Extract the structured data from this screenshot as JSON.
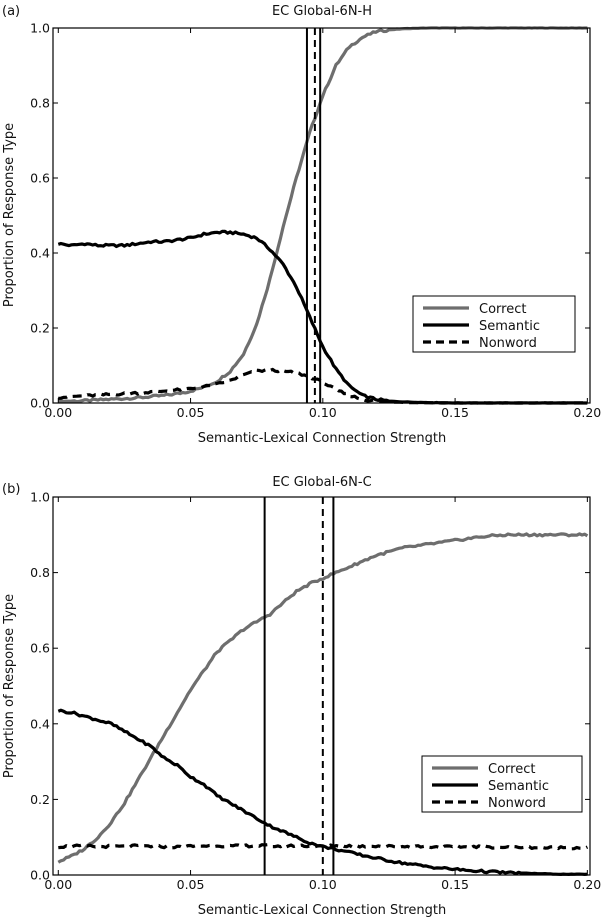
{
  "chart_data": [
    {
      "type": "line",
      "panel_label": "(a)",
      "title": "EC Global-6N-H",
      "xlabel": "Semantic-Lexical Connection Strength",
      "ylabel": "Proportion of Response Type",
      "xlim": [
        -0.002,
        0.201
      ],
      "ylim": [
        0.0,
        1.0
      ],
      "xticks": [
        0.0,
        0.05,
        0.1,
        0.15,
        0.2
      ],
      "xtick_labels": [
        "0.00",
        "0.05",
        "0.10",
        "0.15",
        "0.20"
      ],
      "yticks": [
        0.0,
        0.2,
        0.4,
        0.6,
        0.8,
        1.0
      ],
      "ytick_labels": [
        "0.0",
        "0.2",
        "0.4",
        "0.6",
        "0.8",
        "1.0"
      ],
      "grid": false,
      "legend": {
        "placement": "center-right-lower",
        "entries": [
          {
            "label": "Correct",
            "style": "solid",
            "color": "#6e6e6e"
          },
          {
            "label": "Semantic",
            "style": "solid",
            "color": "#000000"
          },
          {
            "label": "Nonword",
            "style": "dashed",
            "color": "#000000"
          }
        ]
      },
      "vlines": [
        {
          "x": 0.094,
          "style": "solid"
        },
        {
          "x": 0.097,
          "style": "dashed"
        },
        {
          "x": 0.099,
          "style": "solid"
        }
      ],
      "x": [
        0.0,
        0.005,
        0.01,
        0.015,
        0.02,
        0.025,
        0.03,
        0.035,
        0.04,
        0.045,
        0.05,
        0.055,
        0.06,
        0.065,
        0.07,
        0.075,
        0.08,
        0.085,
        0.09,
        0.095,
        0.1,
        0.105,
        0.11,
        0.115,
        0.12,
        0.125,
        0.13,
        0.135,
        0.14,
        0.145,
        0.15,
        0.155,
        0.16,
        0.165,
        0.17,
        0.175,
        0.18,
        0.185,
        0.19,
        0.195,
        0.2
      ],
      "series": [
        {
          "name": "Correct",
          "color": "#6e6e6e",
          "style": "solid",
          "values": [
            0.005,
            0.005,
            0.006,
            0.008,
            0.01,
            0.012,
            0.014,
            0.017,
            0.02,
            0.025,
            0.032,
            0.042,
            0.058,
            0.085,
            0.13,
            0.21,
            0.33,
            0.47,
            0.6,
            0.72,
            0.82,
            0.9,
            0.95,
            0.975,
            0.99,
            0.995,
            0.998,
            0.999,
            1.0,
            1.0,
            1.0,
            1.0,
            1.0,
            1.0,
            1.0,
            1.0,
            1.0,
            1.0,
            1.0,
            1.0,
            1.0
          ]
        },
        {
          "name": "Semantic",
          "color": "#000000",
          "style": "solid",
          "values": [
            0.425,
            0.42,
            0.425,
            0.42,
            0.42,
            0.42,
            0.425,
            0.43,
            0.43,
            0.435,
            0.44,
            0.45,
            0.455,
            0.455,
            0.45,
            0.44,
            0.41,
            0.37,
            0.31,
            0.23,
            0.15,
            0.09,
            0.045,
            0.02,
            0.01,
            0.005,
            0.003,
            0.002,
            0.001,
            0.001,
            0.0,
            0.0,
            0.0,
            0.0,
            0.0,
            0.0,
            0.0,
            0.0,
            0.0,
            0.0,
            0.0
          ]
        },
        {
          "name": "Nonword",
          "color": "#000000",
          "style": "dashed",
          "values": [
            0.015,
            0.017,
            0.019,
            0.021,
            0.023,
            0.025,
            0.027,
            0.029,
            0.032,
            0.035,
            0.038,
            0.043,
            0.05,
            0.06,
            0.075,
            0.085,
            0.088,
            0.085,
            0.08,
            0.07,
            0.055,
            0.035,
            0.02,
            0.01,
            0.005,
            0.003,
            0.002,
            0.001,
            0.001,
            0.0,
            0.0,
            0.0,
            0.0,
            0.0,
            0.0,
            0.0,
            0.0,
            0.0,
            0.0,
            0.0,
            0.0
          ]
        }
      ]
    },
    {
      "type": "line",
      "panel_label": "(b)",
      "title": "EC Global-6N-C",
      "xlabel": "Semantic-Lexical Connection Strength",
      "ylabel": "Proportion of Response Type",
      "xlim": [
        -0.002,
        0.201
      ],
      "ylim": [
        0.0,
        1.0
      ],
      "xticks": [
        0.0,
        0.05,
        0.1,
        0.15,
        0.2
      ],
      "xtick_labels": [
        "0.00",
        "0.05",
        "0.10",
        "0.15",
        "0.20"
      ],
      "yticks": [
        0.0,
        0.2,
        0.4,
        0.6,
        0.8,
        1.0
      ],
      "ytick_labels": [
        "0.0",
        "0.2",
        "0.4",
        "0.6",
        "0.8",
        "1.0"
      ],
      "grid": false,
      "legend": {
        "placement": "lower-right",
        "entries": [
          {
            "label": "Correct",
            "style": "solid",
            "color": "#6e6e6e"
          },
          {
            "label": "Semantic",
            "style": "solid",
            "color": "#000000"
          },
          {
            "label": "Nonword",
            "style": "dashed",
            "color": "#000000"
          }
        ]
      },
      "vlines": [
        {
          "x": 0.078,
          "style": "solid"
        },
        {
          "x": 0.1,
          "style": "dashed"
        },
        {
          "x": 0.104,
          "style": "solid"
        }
      ],
      "x": [
        0.0,
        0.005,
        0.01,
        0.015,
        0.02,
        0.025,
        0.03,
        0.035,
        0.04,
        0.045,
        0.05,
        0.055,
        0.06,
        0.065,
        0.07,
        0.075,
        0.08,
        0.085,
        0.09,
        0.095,
        0.1,
        0.105,
        0.11,
        0.115,
        0.12,
        0.125,
        0.13,
        0.135,
        0.14,
        0.145,
        0.15,
        0.155,
        0.16,
        0.165,
        0.17,
        0.175,
        0.18,
        0.185,
        0.19,
        0.195,
        0.2
      ],
      "series": [
        {
          "name": "Correct",
          "color": "#6e6e6e",
          "style": "solid",
          "values": [
            0.035,
            0.05,
            0.07,
            0.1,
            0.14,
            0.19,
            0.25,
            0.31,
            0.37,
            0.43,
            0.49,
            0.54,
            0.59,
            0.62,
            0.65,
            0.67,
            0.69,
            0.72,
            0.75,
            0.77,
            0.785,
            0.8,
            0.815,
            0.83,
            0.845,
            0.855,
            0.865,
            0.87,
            0.875,
            0.88,
            0.885,
            0.89,
            0.895,
            0.898,
            0.9,
            0.9,
            0.9,
            0.9,
            0.9,
            0.9,
            0.9
          ]
        },
        {
          "name": "Semantic",
          "color": "#000000",
          "style": "solid",
          "values": [
            0.435,
            0.43,
            0.42,
            0.41,
            0.4,
            0.38,
            0.36,
            0.34,
            0.31,
            0.29,
            0.26,
            0.24,
            0.21,
            0.19,
            0.17,
            0.15,
            0.13,
            0.115,
            0.1,
            0.085,
            0.075,
            0.068,
            0.06,
            0.052,
            0.045,
            0.038,
            0.032,
            0.027,
            0.022,
            0.018,
            0.015,
            0.012,
            0.01,
            0.008,
            0.006,
            0.005,
            0.004,
            0.003,
            0.002,
            0.002,
            0.002
          ]
        },
        {
          "name": "Nonword",
          "color": "#000000",
          "style": "dashed",
          "values": [
            0.075,
            0.076,
            0.077,
            0.075,
            0.076,
            0.075,
            0.077,
            0.076,
            0.075,
            0.074,
            0.076,
            0.077,
            0.078,
            0.076,
            0.077,
            0.078,
            0.077,
            0.076,
            0.078,
            0.077,
            0.075,
            0.078,
            0.077,
            0.076,
            0.077,
            0.076,
            0.075,
            0.076,
            0.075,
            0.074,
            0.075,
            0.074,
            0.075,
            0.074,
            0.073,
            0.074,
            0.073,
            0.072,
            0.073,
            0.072,
            0.072
          ]
        }
      ]
    }
  ]
}
